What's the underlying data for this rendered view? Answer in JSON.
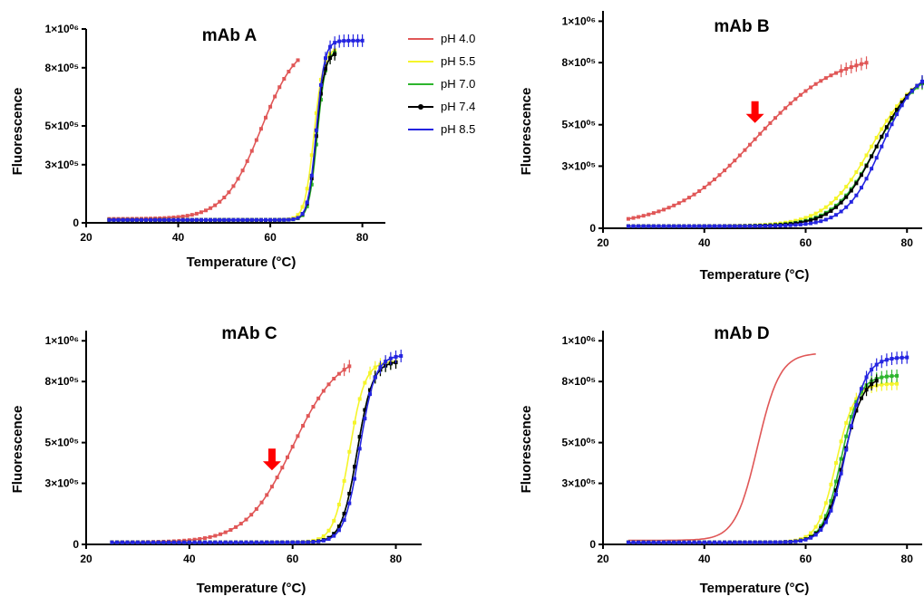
{
  "legend": [
    {
      "label": "pH 4.0",
      "color": "#e05757",
      "marker": "square"
    },
    {
      "label": "pH 5.5",
      "color": "#f5f52a",
      "marker": "triangle-up"
    },
    {
      "label": "pH 7.0",
      "color": "#2db52d",
      "marker": "triangle-down"
    },
    {
      "label": "pH 7.4",
      "color": "#000000",
      "marker": "diamond"
    },
    {
      "label": "pH 8.5",
      "color": "#2424e0",
      "marker": "circle"
    }
  ],
  "chart_data": [
    {
      "type": "scatter",
      "title": "mAb A",
      "xlabel": "Temperature (°C)",
      "ylabel": "Fluorescence",
      "xlim": [
        20,
        85
      ],
      "ylim": [
        0,
        1000000
      ],
      "x_ticks": [
        20,
        40,
        60,
        80
      ],
      "x_tick_labels": [
        "20",
        "40",
        "60",
        "80"
      ],
      "y_ticks": [
        0,
        300000,
        500000,
        800000,
        1000000
      ],
      "y_tick_labels": [
        "0",
        "3×10⁰⁵",
        "5×10⁰⁵",
        "8×10⁰⁵",
        "1×10⁰⁶"
      ],
      "series": [
        {
          "name": "pH 4.0",
          "tm": 58,
          "slope": 4.0,
          "base": 20000,
          "top": 950000,
          "x_start": 25,
          "x_end": 66
        },
        {
          "name": "pH 5.5",
          "tm": 69.5,
          "slope": 1.0,
          "base": 15000,
          "top": 900000,
          "x_start": 25,
          "x_end": 74
        },
        {
          "name": "pH 7.0",
          "tm": 70.2,
          "slope": 0.9,
          "base": 15000,
          "top": 890000,
          "x_start": 25,
          "x_end": 74
        },
        {
          "name": "pH 7.4",
          "tm": 70.0,
          "slope": 0.9,
          "base": 15000,
          "top": 880000,
          "x_start": 25,
          "x_end": 74
        },
        {
          "name": "pH 8.5",
          "tm": 70.0,
          "slope": 0.9,
          "base": 15000,
          "top": 940000,
          "x_start": 25,
          "x_end": 80
        }
      ]
    },
    {
      "type": "scatter",
      "title": "mAb B",
      "xlabel": "Temperature (°C)",
      "ylabel": "Fluorescence",
      "xlim": [
        20,
        83
      ],
      "ylim": [
        0,
        1050000
      ],
      "x_ticks": [
        20,
        40,
        60,
        80
      ],
      "x_tick_labels": [
        "20",
        "40",
        "60",
        "80"
      ],
      "y_ticks": [
        0,
        300000,
        500000,
        800000,
        1000000
      ],
      "y_tick_labels": [
        "0",
        "3×10⁰⁵",
        "5×10⁰⁵",
        "8×10⁰⁵",
        "1×10⁰⁶"
      ],
      "annotation_arrow_x": 50,
      "series": [
        {
          "name": "pH 4.0",
          "tm": 50,
          "slope": 8,
          "base": 10000,
          "top": 850000,
          "x_start": 25,
          "x_end": 72
        },
        {
          "name": "pH 5.5",
          "tm": 73,
          "slope": 4.5,
          "base": 10000,
          "top": 780000,
          "x_start": 25,
          "x_end": 83
        },
        {
          "name": "pH 7.0",
          "tm": 74,
          "slope": 4.2,
          "base": 10000,
          "top": 780000,
          "x_start": 25,
          "x_end": 83
        },
        {
          "name": "pH 7.4",
          "tm": 74,
          "slope": 4.0,
          "base": 10000,
          "top": 780000,
          "x_start": 25,
          "x_end": 83
        },
        {
          "name": "pH 8.5",
          "tm": 75,
          "slope": 3.5,
          "base": 10000,
          "top": 780000,
          "x_start": 25,
          "x_end": 83
        }
      ]
    },
    {
      "type": "scatter",
      "title": "mAb C",
      "xlabel": "Temperature (°C)",
      "ylabel": "Fluorescence",
      "xlim": [
        20,
        85
      ],
      "ylim": [
        0,
        1050000
      ],
      "x_ticks": [
        20,
        40,
        60,
        80
      ],
      "x_tick_labels": [
        "20",
        "40",
        "60",
        "80"
      ],
      "y_ticks": [
        0,
        300000,
        500000,
        800000,
        1000000
      ],
      "y_tick_labels": [
        "0",
        "3×10⁰⁵",
        "5×10⁰⁵",
        "8×10⁰⁵",
        "1×10⁰⁶"
      ],
      "annotation_arrow_x": 56,
      "series": [
        {
          "name": "pH 4.0",
          "tm": 60,
          "slope": 4.5,
          "base": 10000,
          "top": 950000,
          "x_start": 25,
          "x_end": 71
        },
        {
          "name": "pH 5.5",
          "tm": 71,
          "slope": 1.5,
          "base": 10000,
          "top": 900000,
          "x_start": 25,
          "x_end": 80
        },
        {
          "name": "pH 7.0",
          "tm": 72.5,
          "slope": 1.5,
          "base": 10000,
          "top": 900000,
          "x_start": 25,
          "x_end": 80
        },
        {
          "name": "pH 7.4",
          "tm": 72.5,
          "slope": 1.5,
          "base": 10000,
          "top": 900000,
          "x_start": 25,
          "x_end": 80
        },
        {
          "name": "pH 8.5",
          "tm": 73,
          "slope": 1.5,
          "base": 10000,
          "top": 930000,
          "x_start": 25,
          "x_end": 81
        }
      ]
    },
    {
      "type": "scatter",
      "title": "mAb D",
      "xlabel": "Temperature (°C)",
      "ylabel": "Fluorescence",
      "xlim": [
        20,
        83
      ],
      "ylim": [
        0,
        1050000
      ],
      "x_ticks": [
        20,
        40,
        60,
        80
      ],
      "x_tick_labels": [
        "20",
        "40",
        "60",
        "80"
      ],
      "y_ticks": [
        0,
        300000,
        500000,
        800000,
        1000000
      ],
      "y_tick_labels": [
        "0",
        "3×10⁰⁵",
        "5×10⁰⁵",
        "8×10⁰⁵",
        "1×10⁰⁶"
      ],
      "series": [
        {
          "name": "pH 4.0",
          "tm": 50.5,
          "slope": 2.2,
          "base": 20000,
          "top": 940000,
          "x_start": 25,
          "x_end": 62,
          "line_only": true
        },
        {
          "name": "pH 5.5",
          "tm": 66,
          "slope": 1.8,
          "base": 10000,
          "top": 790000,
          "x_start": 25,
          "x_end": 78
        },
        {
          "name": "pH 7.0",
          "tm": 67,
          "slope": 1.8,
          "base": 10000,
          "top": 830000,
          "x_start": 25,
          "x_end": 78
        },
        {
          "name": "pH 7.4",
          "tm": 67.5,
          "slope": 1.9,
          "base": 10000,
          "top": 830000,
          "x_start": 25,
          "x_end": 74
        },
        {
          "name": "pH 8.5",
          "tm": 68,
          "slope": 1.9,
          "base": 10000,
          "top": 920000,
          "x_start": 25,
          "x_end": 80
        }
      ]
    }
  ]
}
